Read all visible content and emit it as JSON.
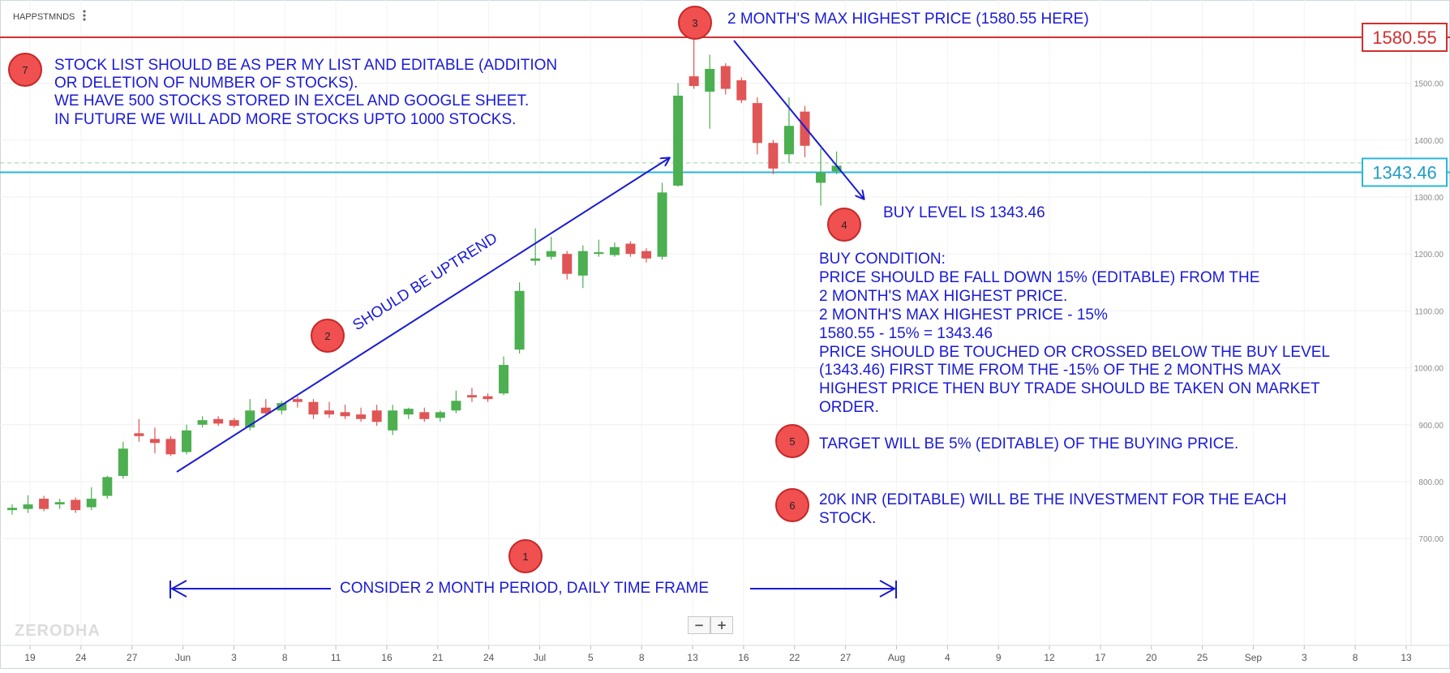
{
  "header": {
    "symbol": "HAPPSTMNDS",
    "menu_icon": "vertical-dots-icon"
  },
  "watermark": "ZERODHA",
  "zoom": {
    "minus": "−",
    "plus": "+"
  },
  "colors": {
    "up": "#4caf50",
    "down": "#e05555",
    "annotation": "#1a1ad6",
    "max_line": "#d32f2f",
    "buy_line": "#29b6d9",
    "marker_fill": "#f05050"
  },
  "chart_data": {
    "type": "candlestick",
    "y_axis": {
      "min": 680,
      "max": 1640,
      "ticks": [
        700,
        800,
        900,
        1000,
        1100,
        1200,
        1300,
        1400,
        1500
      ],
      "tick_labels": [
        "700.00",
        "800.00",
        "900.00",
        "1000.00",
        "1100.00",
        "1200.00",
        "1300.00",
        "1400.00",
        "1500.00"
      ]
    },
    "x_axis": {
      "labels": [
        "19",
        "24",
        "27",
        "Jun",
        "3",
        "8",
        "11",
        "16",
        "21",
        "24",
        "Jul",
        "5",
        "8",
        "13",
        "16",
        "22",
        "27",
        "Aug",
        "4",
        "9",
        "12",
        "17",
        "20",
        "25",
        "Sep",
        "3",
        "8",
        "13"
      ]
    },
    "candles": [
      {
        "o": 750,
        "h": 760,
        "l": 742,
        "c": 754
      },
      {
        "o": 752,
        "h": 776,
        "l": 745,
        "c": 760
      },
      {
        "o": 770,
        "h": 775,
        "l": 748,
        "c": 752
      },
      {
        "o": 760,
        "h": 770,
        "l": 752,
        "c": 764
      },
      {
        "o": 768,
        "h": 772,
        "l": 745,
        "c": 750
      },
      {
        "o": 755,
        "h": 790,
        "l": 750,
        "c": 770
      },
      {
        "o": 775,
        "h": 810,
        "l": 770,
        "c": 808
      },
      {
        "o": 810,
        "h": 870,
        "l": 805,
        "c": 858
      },
      {
        "o": 885,
        "h": 910,
        "l": 870,
        "c": 880
      },
      {
        "o": 875,
        "h": 895,
        "l": 850,
        "c": 868
      },
      {
        "o": 875,
        "h": 880,
        "l": 845,
        "c": 848
      },
      {
        "o": 852,
        "h": 900,
        "l": 848,
        "c": 890
      },
      {
        "o": 900,
        "h": 915,
        "l": 895,
        "c": 908
      },
      {
        "o": 910,
        "h": 915,
        "l": 898,
        "c": 902
      },
      {
        "o": 908,
        "h": 912,
        "l": 895,
        "c": 898
      },
      {
        "o": 895,
        "h": 945,
        "l": 890,
        "c": 925
      },
      {
        "o": 930,
        "h": 945,
        "l": 918,
        "c": 920
      },
      {
        "o": 925,
        "h": 942,
        "l": 918,
        "c": 938
      },
      {
        "o": 945,
        "h": 950,
        "l": 930,
        "c": 940
      },
      {
        "o": 940,
        "h": 945,
        "l": 910,
        "c": 918
      },
      {
        "o": 925,
        "h": 940,
        "l": 912,
        "c": 918
      },
      {
        "o": 922,
        "h": 935,
        "l": 910,
        "c": 915
      },
      {
        "o": 918,
        "h": 930,
        "l": 905,
        "c": 910
      },
      {
        "o": 925,
        "h": 935,
        "l": 898,
        "c": 905
      },
      {
        "o": 890,
        "h": 935,
        "l": 882,
        "c": 925
      },
      {
        "o": 918,
        "h": 930,
        "l": 910,
        "c": 928
      },
      {
        "o": 922,
        "h": 930,
        "l": 905,
        "c": 910
      },
      {
        "o": 912,
        "h": 925,
        "l": 905,
        "c": 922
      },
      {
        "o": 925,
        "h": 960,
        "l": 920,
        "c": 942
      },
      {
        "o": 952,
        "h": 965,
        "l": 940,
        "c": 948
      },
      {
        "o": 950,
        "h": 955,
        "l": 940,
        "c": 945
      },
      {
        "o": 955,
        "h": 1020,
        "l": 952,
        "c": 1005
      },
      {
        "o": 1032,
        "h": 1150,
        "l": 1025,
        "c": 1135
      },
      {
        "o": 1188,
        "h": 1245,
        "l": 1180,
        "c": 1192
      },
      {
        "o": 1195,
        "h": 1230,
        "l": 1190,
        "c": 1205
      },
      {
        "o": 1200,
        "h": 1205,
        "l": 1155,
        "c": 1165
      },
      {
        "o": 1162,
        "h": 1215,
        "l": 1140,
        "c": 1205
      },
      {
        "o": 1200,
        "h": 1225,
        "l": 1195,
        "c": 1203
      },
      {
        "o": 1198,
        "h": 1220,
        "l": 1195,
        "c": 1212
      },
      {
        "o": 1218,
        "h": 1222,
        "l": 1195,
        "c": 1200
      },
      {
        "o": 1205,
        "h": 1210,
        "l": 1185,
        "c": 1192
      },
      {
        "o": 1195,
        "h": 1325,
        "l": 1190,
        "c": 1308
      },
      {
        "o": 1320,
        "h": 1500,
        "l": 1318,
        "c": 1478
      },
      {
        "o": 1512,
        "h": 1580.55,
        "l": 1490,
        "c": 1495
      },
      {
        "o": 1485,
        "h": 1550,
        "l": 1420,
        "c": 1525
      },
      {
        "o": 1530,
        "h": 1535,
        "l": 1480,
        "c": 1490
      },
      {
        "o": 1505,
        "h": 1510,
        "l": 1465,
        "c": 1470
      },
      {
        "o": 1465,
        "h": 1475,
        "l": 1375,
        "c": 1395
      },
      {
        "o": 1395,
        "h": 1400,
        "l": 1340,
        "c": 1350
      },
      {
        "o": 1375,
        "h": 1475,
        "l": 1360,
        "c": 1425
      },
      {
        "o": 1450,
        "h": 1460,
        "l": 1370,
        "c": 1390
      },
      {
        "o": 1325,
        "h": 1385,
        "l": 1285,
        "c": 1343
      },
      {
        "o": 1345,
        "h": 1380,
        "l": 1340,
        "c": 1355
      }
    ],
    "levels": {
      "max_price": 1580.55,
      "max_label": "1580.55",
      "buy_price": 1343.46,
      "buy_label": "1343.46",
      "dashed": 1360
    }
  },
  "annotations": {
    "a1": {
      "num": "1",
      "text": "CONSIDER 2 MONTH PERIOD, DAILY TIME FRAME"
    },
    "a2": {
      "num": "2",
      "text": "SHOULD BE UPTREND"
    },
    "a3": {
      "num": "3",
      "text": "2 MONTH'S MAX HIGHEST PRICE (1580.55 HERE)"
    },
    "a4": {
      "num": "4",
      "text": "BUY LEVEL IS 1343.46"
    },
    "a5": {
      "num": "5",
      "text": "TARGET WILL BE  5% (EDITABLE) OF THE BUYING PRICE."
    },
    "a6": {
      "num": "6",
      "lines": [
        "20K INR (EDITABLE) WILL BE THE INVESTMENT FOR THE EACH",
        "STOCK."
      ]
    },
    "a7": {
      "num": "7",
      "lines": [
        "STOCK LIST SHOULD BE AS PER MY LIST AND EDITABLE (ADDITION",
        "OR DELETION OF NUMBER OF STOCKS).",
        "WE HAVE 500 STOCKS STORED IN EXCEL AND GOOGLE SHEET.",
        "IN FUTURE WE WILL ADD MORE STOCKS UPTO 1000 STOCKS."
      ]
    },
    "buy_condition": {
      "lines": [
        "BUY CONDITION:",
        "PRICE SHOULD BE FALL DOWN 15% (EDITABLE) FROM THE",
        "2 MONTH'S MAX HIGHEST PRICE.",
        "2 MONTH'S MAX HIGHEST PRICE - 15%",
        "1580.55 - 15% = 1343.46",
        "PRICE SHOULD BE TOUCHED OR CROSSED BELOW THE BUY LEVEL",
        "(1343.46) FIRST TIME FROM THE -15% OF THE 2 MONTHS MAX",
        "HIGHEST PRICE THEN BUY TRADE SHOULD BE TAKEN ON MARKET",
        "ORDER."
      ]
    }
  }
}
